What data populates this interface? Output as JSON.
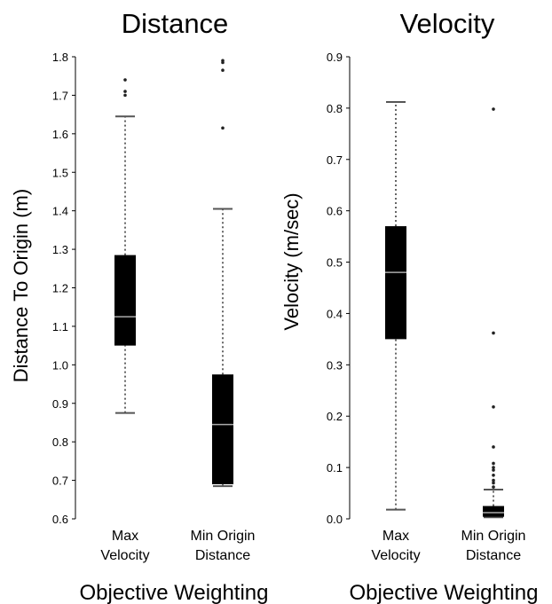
{
  "chart_data": [
    {
      "type": "box",
      "title": "Distance",
      "xlabel": "Objective Weighting",
      "ylabel": "Distance To Origin (m)",
      "ylim": [
        0.6,
        1.8
      ],
      "yticks": [
        "0.6",
        "0.7",
        "0.8",
        "0.9",
        "1.0",
        "1.1",
        "1.2",
        "1.3",
        "1.4",
        "1.5",
        "1.6",
        "1.7",
        "1.8"
      ],
      "grid": false,
      "categories": [
        [
          "Max",
          "Velocity"
        ],
        [
          "Min Origin",
          "Distance"
        ]
      ],
      "boxes": [
        {
          "whisker_low": 0.875,
          "q1": 1.05,
          "median": 1.125,
          "q3": 1.285,
          "whisker_high": 1.645,
          "outliers": [
            1.7,
            1.71,
            1.74
          ]
        },
        {
          "whisker_low": 0.685,
          "q1": 0.69,
          "median": 0.845,
          "q3": 0.975,
          "whisker_high": 1.405,
          "outliers": [
            1.615,
            1.765,
            1.785,
            1.79
          ]
        }
      ]
    },
    {
      "type": "box",
      "title": "Velocity",
      "xlabel": "Objective Weighting",
      "ylabel": "Velocity (m/sec)",
      "ylim": [
        0.0,
        0.9
      ],
      "yticks": [
        "0.0",
        "0.1",
        "0.2",
        "0.3",
        "0.4",
        "0.5",
        "0.6",
        "0.7",
        "0.8",
        "0.9"
      ],
      "grid": false,
      "categories": [
        [
          "Max",
          "Velocity"
        ],
        [
          "Min Origin",
          "Distance"
        ]
      ],
      "boxes": [
        {
          "whisker_low": 0.018,
          "q1": 0.35,
          "median": 0.48,
          "q3": 0.57,
          "whisker_high": 0.812,
          "outliers": []
        },
        {
          "whisker_low": 0.003,
          "q1": 0.004,
          "median": 0.012,
          "q3": 0.025,
          "whisker_high": 0.057,
          "outliers": [
            0.062,
            0.07,
            0.075,
            0.085,
            0.095,
            0.1,
            0.108,
            0.14,
            0.218,
            0.362,
            0.798
          ]
        }
      ]
    }
  ]
}
